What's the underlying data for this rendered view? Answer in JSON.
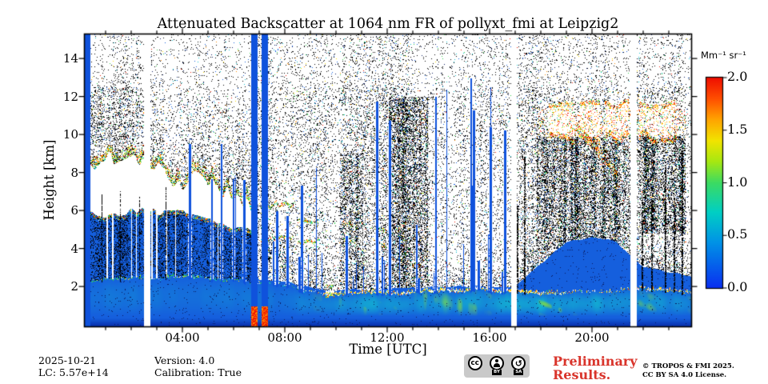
{
  "footer": {
    "date": "2025-10-21",
    "lc": "LC: 5.57e+14",
    "version": "Version: 4.0",
    "calibration": "Calibration: True",
    "preliminary_line1": "Preliminary",
    "preliminary_line2": "Results.",
    "preliminary_color": "#d9342b",
    "copyright_line1": "© TROPOS & FMI 2025.",
    "copyright_line2": "CC BY SA 4.0 License.",
    "cc_badge": {
      "cc": "cc",
      "by": "BY",
      "sa": "SA",
      "sa_glyph": "↺"
    }
  },
  "chart_data": {
    "type": "heatmap",
    "title": "Attenuated Backscatter at 1064 nm FR of pollyxt_fmi at Leipzig2",
    "xlabel": "Time [UTC]",
    "ylabel": "Height [km]",
    "x_tick_labels": [
      "04:00",
      "08:00",
      "12:00",
      "16:00",
      "20:00"
    ],
    "x_tick_hours": [
      4,
      8,
      12,
      16,
      20
    ],
    "x_minor_step_hours": 1,
    "x_range_hours": [
      0.1875,
      23.875
    ],
    "y_tick_labels": [
      "2",
      "4",
      "6",
      "8",
      "10",
      "12",
      "14"
    ],
    "y_tick_km": [
      2,
      4,
      6,
      8,
      10,
      12,
      14
    ],
    "y_range_km": [
      -0.1,
      15.27
    ],
    "colorbar": {
      "unit": "Mm⁻¹ sr⁻¹",
      "tick_labels": [
        "0.0",
        "0.5",
        "1.0",
        "1.5",
        "2.0"
      ],
      "tick_values": [
        0,
        0.5,
        1,
        1.5,
        2
      ],
      "range": [
        0,
        2
      ],
      "gradient_stops": [
        [
          0,
          "#0a2ff0"
        ],
        [
          0.22,
          "#0094e6"
        ],
        [
          0.36,
          "#00cfc4"
        ],
        [
          0.5,
          "#3cdb62"
        ],
        [
          0.6,
          "#a6e812"
        ],
        [
          0.7,
          "#f2e400"
        ],
        [
          0.8,
          "#ffa400"
        ],
        [
          0.9,
          "#ff4e00"
        ],
        [
          1,
          "#ef0e00"
        ]
      ]
    },
    "palette": {
      "deep_blue": "#0a36b4",
      "blue": "#155fdd",
      "stripe_blue": "#0f52dc",
      "cyan": "#12c0cf",
      "green": "#2fd04a",
      "yellow_green": "#a6e812",
      "yellow": "#ffe000",
      "orange": "#ff8c00",
      "red": "#f01800",
      "white": "#ffffff",
      "black": "#000000",
      "navy": "#0a1a60"
    },
    "features": {
      "noise_seed": 1337,
      "boundary_layer_top_km": [
        2.3,
        2.4,
        2.5,
        2.45,
        2.5,
        2.45,
        2.35,
        2.2,
        2.0,
        1.7,
        1.55,
        1.6,
        1.65,
        1.7,
        1.75,
        1.8,
        1.8,
        1.75,
        1.6,
        1.65,
        1.75,
        1.8,
        1.85,
        1.75,
        1.7
      ],
      "blue_top_km": [
        5.8,
        5.6,
        5.7,
        5.7,
        5.9,
        5.5,
        5.1,
        2.4,
        2.2,
        1.95,
        1.75,
        1.8,
        1.85,
        1.9,
        1.95,
        2.0,
        2.0,
        1.95,
        3.2,
        4.3,
        4.6,
        4.3,
        3.0,
        2.7,
        2.5
      ],
      "teal_band_strength": [
        0.25,
        0.3,
        0.3,
        0.3,
        0.3,
        0.3,
        0.3,
        0.3,
        0.35,
        0.5,
        0.7,
        0.75,
        0.8,
        0.8,
        0.8,
        0.8,
        0.8,
        0.9,
        1.0,
        1.0,
        0.9,
        0.7,
        0.7,
        0.65,
        0.6
      ],
      "green_accent_strength": [
        0,
        0,
        0,
        0,
        0,
        0,
        0,
        0,
        0,
        0.2,
        0.4,
        0.5,
        0.6,
        0.5,
        0.5,
        0.5,
        0.5,
        0.8,
        1.0,
        0.9,
        0.5,
        0.3,
        0.45,
        0.4,
        0.3
      ],
      "bright_band_strength": [
        0.35,
        0.5,
        0.6,
        0.4,
        0.6,
        0.6,
        0.4,
        0.3,
        0.3,
        0.5,
        0.9,
        0.85,
        0.9,
        0.9,
        0.95,
        0.95,
        0.9,
        1.0,
        0.9,
        0.5,
        0.4,
        0.5,
        0.8,
        0.7,
        0.6
      ],
      "data_gaps_hours": [
        [
          2.51,
          2.76
        ],
        [
          16.85,
          17.07
        ],
        [
          21.51,
          21.76
        ]
      ],
      "calibration_stripes_hours": [
        [
          0.18,
          0.41
        ],
        [
          6.7,
          6.93
        ],
        [
          7.1,
          7.33
        ]
      ],
      "stripe_bottom_marker_km": 0.95,
      "morning_cloud": {
        "hours": [
          0.18,
          6.95
        ],
        "step_hours": 0.5,
        "base_km": [
          6.3,
          5.9,
          5.6,
          5.8,
          6.0,
          6.0,
          5.9,
          6.0,
          6.1,
          5.9,
          5.6,
          5.3,
          5.0,
          4.9,
          4.8
        ],
        "top_km": [
          7.0,
          8.3,
          8.7,
          8.8,
          8.6,
          8.4,
          8.2,
          7.7,
          7.4,
          7.9,
          7.7,
          7.2,
          6.7,
          6.3,
          6.0
        ]
      },
      "white_blobs": [
        [
          7.05,
          8.35,
          4.6,
          6.2,
          "broken"
        ],
        [
          8.5,
          9.35,
          4.4,
          5.3,
          "broken"
        ],
        [
          10.25,
          10.62,
          4.5,
          5.15,
          "solid"
        ],
        [
          11.62,
          11.97,
          4.15,
          4.85,
          "solid"
        ],
        [
          9.6,
          9.95,
          1.6,
          2.0,
          "solid"
        ],
        [
          13.0,
          13.3,
          2.5,
          2.95,
          "broken"
        ]
      ],
      "dense_zones": [
        [
          0.2,
          2.5,
          9.3,
          12.5,
          0.25
        ],
        [
          10.15,
          11.05,
          1.9,
          9.0,
          0.42
        ],
        [
          12.05,
          13.6,
          2.0,
          12.0,
          0.48
        ],
        [
          17.85,
          21.5,
          3.8,
          9.9,
          0.5
        ],
        [
          21.85,
          23.65,
          4.8,
          10.0,
          0.45
        ],
        [
          7.0,
          8.45,
          2.2,
          4.5,
          0.3
        ]
      ],
      "cirrus_blobs_hours": [
        [
          18.3,
          19.3
        ],
        [
          19.5,
          20.3
        ],
        [
          20.5,
          21.45
        ],
        [
          21.85,
          22.6
        ],
        [
          22.7,
          23.3
        ]
      ],
      "cirrus_halo_hours": [
        17.9,
        23.65
      ],
      "cirrus_base_km": 10.0,
      "cirrus_top_km": 11.35,
      "streaks": {
        "midday": {
          "hours": [
            10.0,
            16.6
          ],
          "count": 26,
          "top_km": [
            2.4,
            13.0
          ]
        },
        "morning_late": {
          "hours": [
            7.4,
            9.9
          ],
          "count": 10,
          "top_km": [
            3.5,
            9.5
          ]
        },
        "in_cloud": {
          "hours": [
            4.2,
            6.7
          ],
          "count": 6,
          "top_km": [
            7.5,
            10.5
          ]
        },
        "evening_dark_hours": [
          17.05,
          17.35,
          21.95,
          22.3,
          22.85,
          23.2,
          23.5
        ],
        "morning_dark_hours": [
          0.85,
          1.55,
          2.3,
          3.35
        ],
        "morning_slots_count": 9
      }
    }
  }
}
